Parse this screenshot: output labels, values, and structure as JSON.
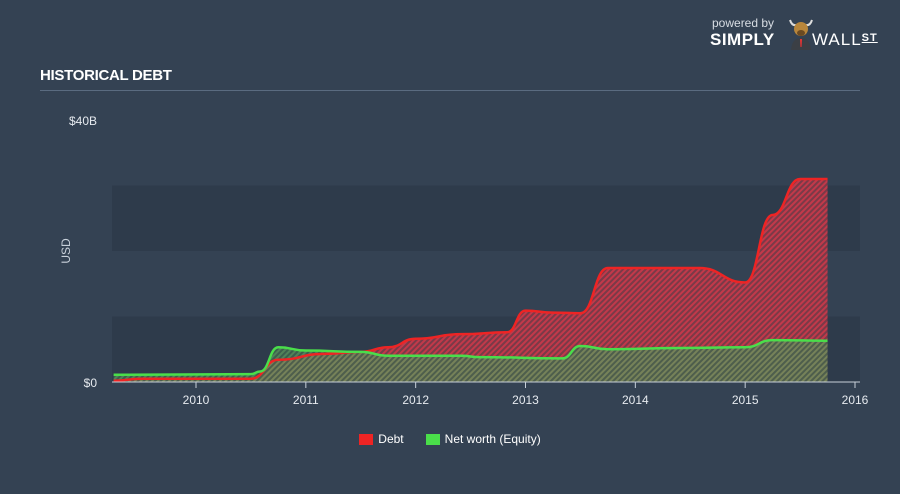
{
  "header": {
    "title": "HISTORICAL DEBT",
    "brand_powered": "powered by",
    "brand_name_1": "SIMPLY",
    "brand_name_2": "WALL",
    "brand_name_3": "ST"
  },
  "chart_data": {
    "type": "area",
    "title": "HISTORICAL DEBT",
    "ylabel": "USD",
    "ylim": [
      0,
      40
    ],
    "xlim": [
      "2009-04-01",
      "2016-01-01"
    ],
    "y_ticks": [
      {
        "value": 0,
        "label": "$0"
      },
      {
        "value": 40,
        "label": "$40B"
      }
    ],
    "x_ticks": [
      "2010",
      "2011",
      "2012",
      "2013",
      "2014",
      "2015",
      "2016"
    ],
    "grid": "alternating bands every $10B",
    "legend_placement": "bottom",
    "colors": {
      "Debt": "#ee2424",
      "Net worth (Equity)": "#4ade4a"
    },
    "series": [
      {
        "name": "Debt",
        "unit": "USD billions",
        "points": [
          [
            "2009-04-01",
            0.2
          ],
          [
            "2009-07-01",
            0.5
          ],
          [
            "2010-07-01",
            0.5
          ],
          [
            "2010-10-01",
            3.4
          ],
          [
            "2011-03-01",
            4.3
          ],
          [
            "2011-07-01",
            4.6
          ],
          [
            "2011-10-01",
            5.3
          ],
          [
            "2012-01-01",
            6.6
          ],
          [
            "2012-06-01",
            7.3
          ],
          [
            "2012-11-01",
            7.6
          ],
          [
            "2013-01-01",
            10.9
          ],
          [
            "2013-04-01",
            10.6
          ],
          [
            "2013-07-01",
            10.5
          ],
          [
            "2013-10-01",
            17.4
          ],
          [
            "2014-08-01",
            17.4
          ],
          [
            "2015-01-01",
            15.2
          ],
          [
            "2015-04-01",
            25.5
          ],
          [
            "2015-07-01",
            31.0
          ],
          [
            "2015-10-01",
            31.0
          ]
        ]
      },
      {
        "name": "Net worth (Equity)",
        "unit": "USD billions",
        "points": [
          [
            "2009-04-01",
            1.1
          ],
          [
            "2010-07-01",
            1.2
          ],
          [
            "2010-08-01",
            1.6
          ],
          [
            "2010-10-01",
            5.3
          ],
          [
            "2011-01-01",
            4.8
          ],
          [
            "2011-07-01",
            4.6
          ],
          [
            "2011-10-01",
            4.0
          ],
          [
            "2012-06-01",
            4.0
          ],
          [
            "2012-08-01",
            3.8
          ],
          [
            "2013-05-01",
            3.6
          ],
          [
            "2013-07-01",
            5.5
          ],
          [
            "2013-10-01",
            5.0
          ],
          [
            "2014-06-01",
            5.2
          ],
          [
            "2015-01-01",
            5.3
          ],
          [
            "2015-04-01",
            6.4
          ],
          [
            "2015-10-01",
            6.3
          ]
        ]
      }
    ]
  },
  "legend": [
    {
      "label": "Debt",
      "color": "#ee2424"
    },
    {
      "label": "Net worth (Equity)",
      "color": "#4ade4a"
    }
  ]
}
